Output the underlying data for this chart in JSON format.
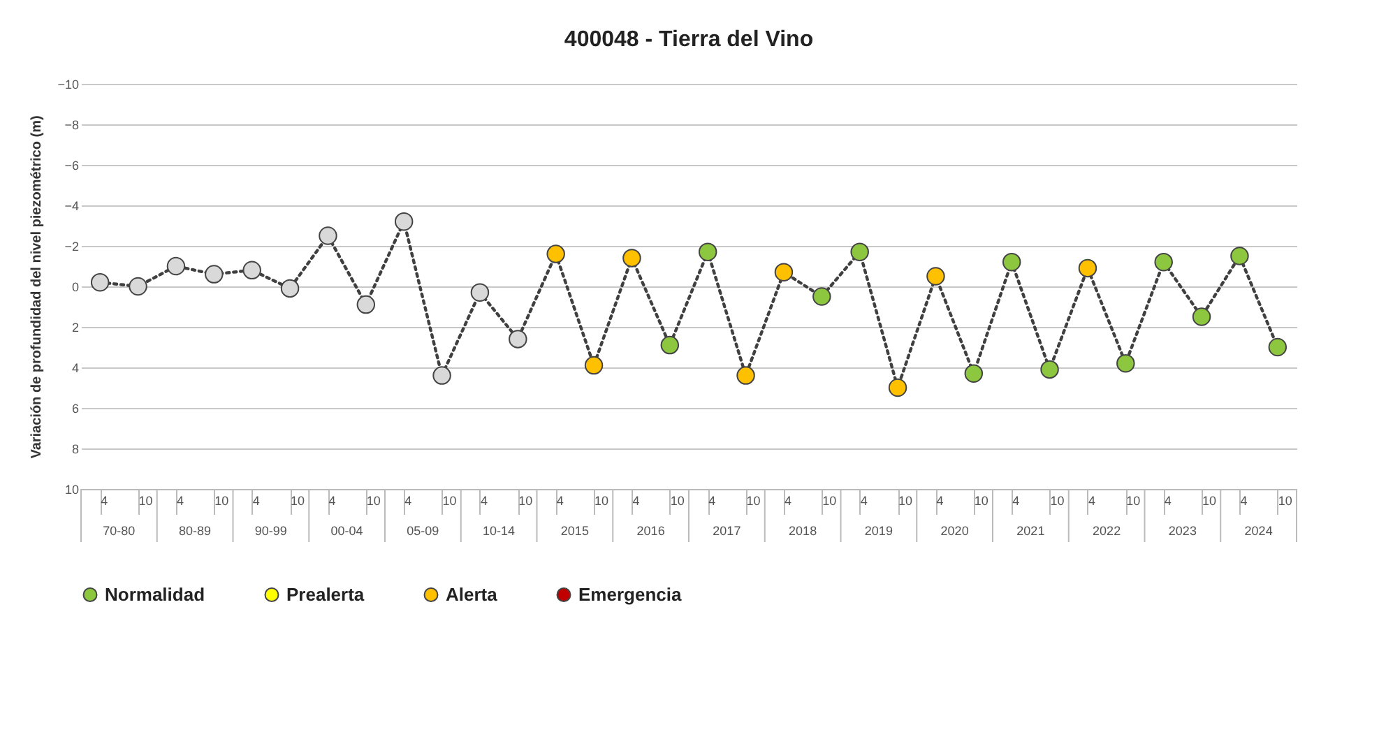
{
  "chart_data": {
    "type": "line",
    "title": "400048 - Tierra del Vino",
    "ylabel": "Variación de profundidad del nivel piezométrico (m)",
    "categories": [
      "4",
      "10",
      "4",
      "10",
      "4",
      "10",
      "4",
      "10",
      "4",
      "10",
      "4",
      "10",
      "4",
      "10",
      "4",
      "10",
      "4",
      "10",
      "4",
      "10",
      "4",
      "10",
      "4",
      "10",
      "4",
      "10",
      "4",
      "10",
      "4",
      "10",
      "4",
      "10"
    ],
    "annotations": [
      "70-80",
      "80-89",
      "90-99",
      "00-04",
      "05-09",
      "10-14",
      "2015",
      "2016",
      "2017",
      "2018",
      "2019",
      "2020",
      "2021",
      "2022",
      "2023",
      "2024"
    ],
    "series": [
      {
        "type": "line",
        "color": "#404040",
        "line_style": "dotted",
        "values": [
          -0.2,
          0.0,
          -1.0,
          -0.6,
          -0.8,
          0.1,
          -2.5,
          0.9,
          -3.2,
          4.4,
          0.3,
          2.6,
          -1.6,
          3.9,
          -1.4,
          2.9,
          -1.7,
          4.4,
          -0.7,
          0.5,
          -1.7,
          5.0,
          -0.5,
          4.3,
          -1.2,
          4.1,
          -0.9,
          3.8,
          -1.2,
          1.5,
          -1.5,
          3.0
        ]
      },
      {
        "type": "scatter",
        "marker": "circle",
        "color": "#d9d9d9",
        "values": [
          -0.2,
          0.0,
          -1.0,
          -0.6,
          -0.8,
          0.1,
          -2.5,
          0.9,
          -3.2,
          4.4,
          0.3,
          2.6,
          null,
          null,
          null,
          null,
          null,
          null,
          null,
          null,
          null,
          null,
          null,
          null,
          null,
          null,
          null,
          null,
          null,
          null,
          null,
          null
        ]
      },
      {
        "type": "scatter",
        "marker": "circle",
        "name": "Normalidad",
        "color": "#8dc63f",
        "values": [
          null,
          null,
          null,
          null,
          null,
          null,
          null,
          null,
          null,
          null,
          null,
          null,
          null,
          null,
          null,
          2.9,
          -1.7,
          null,
          null,
          0.5,
          -1.7,
          null,
          null,
          4.3,
          -1.2,
          4.1,
          null,
          3.8,
          -1.2,
          1.5,
          -1.5,
          3.0
        ]
      },
      {
        "type": "scatter",
        "marker": "circle",
        "name": "Prealerta",
        "color": "#ffff00",
        "values": [
          null,
          null,
          null,
          null,
          null,
          null,
          null,
          null,
          null,
          null,
          null,
          null,
          null,
          null,
          null,
          null,
          null,
          null,
          null,
          null,
          null,
          null,
          null,
          null,
          null,
          null,
          null,
          null,
          null,
          null,
          null,
          null
        ]
      },
      {
        "type": "scatter",
        "marker": "circle",
        "name": "Alerta",
        "color": "#ffc000",
        "values": [
          null,
          null,
          null,
          null,
          null,
          null,
          null,
          null,
          null,
          null,
          null,
          null,
          -1.6,
          3.9,
          -1.4,
          null,
          null,
          4.4,
          -0.7,
          null,
          null,
          5.0,
          -0.5,
          null,
          null,
          null,
          -0.9,
          null,
          null,
          null,
          null,
          null
        ]
      },
      {
        "type": "scatter",
        "marker": "circle",
        "name": "Emergencia",
        "color": "#c00000",
        "values": [
          null,
          null,
          null,
          null,
          null,
          null,
          null,
          null,
          null,
          null,
          null,
          null,
          null,
          null,
          null,
          null,
          null,
          null,
          null,
          null,
          null,
          null,
          null,
          null,
          null,
          null,
          null,
          null,
          null,
          null,
          null,
          null
        ]
      }
    ],
    "ylim": [
      10,
      -10
    ],
    "yticks": [
      -10,
      -8,
      -6,
      -4,
      -2,
      0,
      2,
      4,
      6,
      8,
      10
    ],
    "grid": "y",
    "legend": "bottom"
  }
}
